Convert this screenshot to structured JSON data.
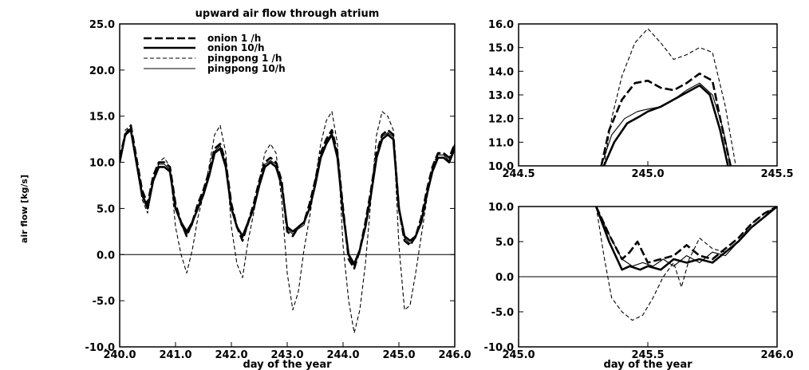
{
  "chart_data": [
    {
      "id": "main",
      "type": "line",
      "title": "upward air flow through atrium",
      "xlabel": "day of the year",
      "ylabel": "air flow [kg/s]",
      "xlim": [
        240.0,
        246.0
      ],
      "ylim": [
        -10.0,
        25.0
      ],
      "xticks": [
        "240.0",
        "241.0",
        "242.0",
        "243.0",
        "244.0",
        "245.0",
        "246.0"
      ],
      "yticks": [
        "-10.0",
        "-5.0",
        "0.0",
        "5.0",
        "10.0",
        "15.0",
        "20.0",
        "25.0"
      ],
      "zero_line": true,
      "legend_position": "top-left",
      "series": [
        {
          "name": "onion 1 /h",
          "style": "dashed-thick",
          "x": [
            240.0,
            240.1,
            240.2,
            240.3,
            240.4,
            240.5,
            240.6,
            240.7,
            240.8,
            240.9,
            241.0,
            241.1,
            241.2,
            241.3,
            241.4,
            241.5,
            241.6,
            241.7,
            241.8,
            241.9,
            242.0,
            242.1,
            242.2,
            242.3,
            242.4,
            242.5,
            242.6,
            242.7,
            242.8,
            242.9,
            243.0,
            243.1,
            243.2,
            243.3,
            243.4,
            243.5,
            243.6,
            243.7,
            243.8,
            243.9,
            244.0,
            244.1,
            244.2,
            244.3,
            244.4,
            244.5,
            244.6,
            244.7,
            244.8,
            244.9,
            245.0,
            245.1,
            245.2,
            245.3,
            245.4,
            245.5,
            245.6,
            245.7,
            245.8,
            245.9,
            246.0
          ],
          "y": [
            10.5,
            13.0,
            14.0,
            10.5,
            7.0,
            5.5,
            8.5,
            10.0,
            10.0,
            9.5,
            5.5,
            3.5,
            2.0,
            3.5,
            5.5,
            7.0,
            9.0,
            11.5,
            12.0,
            10.0,
            5.5,
            3.0,
            1.5,
            3.5,
            5.5,
            8.0,
            10.0,
            10.5,
            10.0,
            8.0,
            2.5,
            2.0,
            3.0,
            3.5,
            5.5,
            8.0,
            11.0,
            12.5,
            13.5,
            11.0,
            5.0,
            -0.5,
            -1.5,
            0.5,
            3.5,
            7.0,
            11.0,
            13.0,
            13.5,
            13.0,
            5.0,
            1.5,
            1.0,
            2.0,
            4.0,
            7.0,
            9.5,
            11.0,
            11.0,
            10.5,
            12.0
          ]
        },
        {
          "name": "onion 10/h",
          "style": "solid-thick",
          "x": [
            240.0,
            240.1,
            240.2,
            240.3,
            240.4,
            240.5,
            240.6,
            240.7,
            240.8,
            240.9,
            241.0,
            241.1,
            241.2,
            241.3,
            241.4,
            241.5,
            241.6,
            241.7,
            241.8,
            241.9,
            242.0,
            242.1,
            242.2,
            242.3,
            242.4,
            242.5,
            242.6,
            242.7,
            242.8,
            242.9,
            243.0,
            243.1,
            243.2,
            243.3,
            243.4,
            243.5,
            243.6,
            243.7,
            243.8,
            243.9,
            244.0,
            244.1,
            244.2,
            244.3,
            244.4,
            244.5,
            244.6,
            244.7,
            244.8,
            244.9,
            245.0,
            245.1,
            245.2,
            245.3,
            245.4,
            245.5,
            245.6,
            245.7,
            245.8,
            245.9,
            246.0
          ],
          "y": [
            10.0,
            13.0,
            13.5,
            10.0,
            6.5,
            5.0,
            8.0,
            9.5,
            9.5,
            9.0,
            5.0,
            3.5,
            2.5,
            3.5,
            5.0,
            6.5,
            8.5,
            11.0,
            11.5,
            9.5,
            5.0,
            3.0,
            2.0,
            3.5,
            5.0,
            7.5,
            9.5,
            10.0,
            9.5,
            7.5,
            3.0,
            2.5,
            3.0,
            3.5,
            5.0,
            7.5,
            10.5,
            12.0,
            13.0,
            10.5,
            4.5,
            0.0,
            -1.0,
            0.5,
            3.0,
            6.5,
            10.5,
            12.5,
            13.0,
            12.5,
            5.0,
            2.0,
            1.5,
            2.0,
            3.5,
            6.5,
            9.0,
            10.5,
            10.5,
            10.0,
            11.5
          ]
        },
        {
          "name": "pingpong 1 /h",
          "style": "dashed-thin",
          "x": [
            240.0,
            240.1,
            240.2,
            240.3,
            240.4,
            240.5,
            240.6,
            240.7,
            240.8,
            240.9,
            241.0,
            241.1,
            241.2,
            241.3,
            241.4,
            241.5,
            241.6,
            241.7,
            241.8,
            241.9,
            242.0,
            242.1,
            242.2,
            242.3,
            242.4,
            242.5,
            242.6,
            242.7,
            242.8,
            242.9,
            243.0,
            243.1,
            243.2,
            243.3,
            243.4,
            243.5,
            243.6,
            243.7,
            243.8,
            243.9,
            244.0,
            244.1,
            244.2,
            244.3,
            244.4,
            244.5,
            244.6,
            244.7,
            244.8,
            244.9,
            245.0,
            245.1,
            245.2,
            245.3,
            245.4,
            245.5,
            245.6,
            245.7,
            245.8,
            245.9,
            246.0
          ],
          "y": [
            10.0,
            13.5,
            14.0,
            10.0,
            6.0,
            4.5,
            8.0,
            10.0,
            10.5,
            9.5,
            3.0,
            0.0,
            -2.0,
            0.5,
            4.0,
            6.5,
            9.5,
            13.0,
            14.0,
            11.0,
            3.0,
            -1.0,
            -2.5,
            1.5,
            4.5,
            8.0,
            11.0,
            12.0,
            11.0,
            6.0,
            -2.0,
            -6.0,
            -4.0,
            0.5,
            4.0,
            8.0,
            12.0,
            14.5,
            15.5,
            12.0,
            1.0,
            -5.0,
            -8.5,
            -6.0,
            -1.0,
            6.0,
            13.0,
            15.5,
            15.0,
            13.5,
            1.0,
            -6.0,
            -5.5,
            -2.0,
            2.0,
            6.0,
            9.5,
            11.0,
            11.0,
            10.5,
            12.0
          ]
        },
        {
          "name": "pingpong 10/h",
          "style": "solid-thin",
          "x": [
            240.0,
            240.1,
            240.2,
            240.3,
            240.4,
            240.5,
            240.6,
            240.7,
            240.8,
            240.9,
            241.0,
            241.1,
            241.2,
            241.3,
            241.4,
            241.5,
            241.6,
            241.7,
            241.8,
            241.9,
            242.0,
            242.1,
            242.2,
            242.3,
            242.4,
            242.5,
            242.6,
            242.7,
            242.8,
            242.9,
            243.0,
            243.1,
            243.2,
            243.3,
            243.4,
            243.5,
            243.6,
            243.7,
            243.8,
            243.9,
            244.0,
            244.1,
            244.2,
            244.3,
            244.4,
            244.5,
            244.6,
            244.7,
            244.8,
            244.9,
            245.0,
            245.1,
            245.2,
            245.3,
            245.4,
            245.5,
            245.6,
            245.7,
            245.8,
            245.9,
            246.0
          ],
          "y": [
            10.2,
            12.8,
            13.8,
            10.2,
            6.8,
            5.2,
            8.2,
            9.8,
            9.8,
            9.2,
            5.2,
            3.2,
            2.2,
            3.2,
            5.2,
            6.8,
            8.8,
            11.2,
            11.8,
            9.8,
            5.2,
            3.2,
            1.8,
            3.2,
            5.2,
            7.8,
            9.8,
            10.2,
            9.8,
            7.8,
            2.8,
            2.2,
            2.8,
            3.2,
            5.2,
            7.8,
            10.8,
            12.2,
            13.2,
            10.8,
            4.8,
            -0.2,
            -1.2,
            0.2,
            3.2,
            6.8,
            10.8,
            12.8,
            13.2,
            12.8,
            4.8,
            1.8,
            1.2,
            1.8,
            3.8,
            6.8,
            9.2,
            10.8,
            10.8,
            10.2,
            11.8
          ]
        }
      ]
    },
    {
      "id": "top-right",
      "type": "line",
      "xlim": [
        244.5,
        245.5
      ],
      "ylim": [
        10.0,
        16.0
      ],
      "xticks": [
        "244.5",
        "245.0",
        "245.5"
      ],
      "yticks": [
        "10.0",
        "11.0",
        "12.0",
        "13.0",
        "14.0",
        "15.0",
        "16.0"
      ],
      "series": [
        {
          "name": "onion 1 /h",
          "style": "dashed-thick",
          "x": [
            244.82,
            244.85,
            244.9,
            244.95,
            245.0,
            245.05,
            245.1,
            245.15,
            245.2,
            245.25,
            245.28,
            245.32
          ],
          "y": [
            10.0,
            11.5,
            12.8,
            13.5,
            13.6,
            13.3,
            13.2,
            13.5,
            13.9,
            13.6,
            12.0,
            10.0
          ]
        },
        {
          "name": "onion 10/h",
          "style": "solid-thick",
          "x": [
            244.83,
            244.87,
            244.92,
            244.97,
            245.0,
            245.05,
            245.1,
            245.15,
            245.2,
            245.24,
            245.28,
            245.31
          ],
          "y": [
            10.0,
            11.0,
            11.8,
            12.1,
            12.3,
            12.5,
            12.8,
            13.1,
            13.4,
            13.0,
            11.5,
            10.0
          ]
        },
        {
          "name": "pingpong 1 /h",
          "style": "dashed-thin",
          "x": [
            244.83,
            244.86,
            244.9,
            244.95,
            245.0,
            245.05,
            245.1,
            245.15,
            245.2,
            245.25,
            245.3,
            245.34
          ],
          "y": [
            10.0,
            12.0,
            13.8,
            15.2,
            15.8,
            15.2,
            14.5,
            14.7,
            15.0,
            14.8,
            12.5,
            10.0
          ]
        },
        {
          "name": "pingpong 10/h",
          "style": "solid-thin",
          "x": [
            244.82,
            244.86,
            244.91,
            244.96,
            245.0,
            245.05,
            245.1,
            245.15,
            245.2,
            245.25,
            245.29,
            245.32
          ],
          "y": [
            10.0,
            11.3,
            12.0,
            12.3,
            12.4,
            12.5,
            12.8,
            13.2,
            13.5,
            13.0,
            11.6,
            10.0
          ]
        }
      ]
    },
    {
      "id": "bottom-right",
      "type": "line",
      "xlabel": "day of the year",
      "xlim": [
        245.0,
        246.0
      ],
      "ylim": [
        -10.0,
        10.0
      ],
      "xticks": [
        "245.0",
        "245.5",
        "246.0"
      ],
      "yticks": [
        "-10.0",
        "-5.0",
        "0.0",
        "5.0",
        "10.0"
      ],
      "zero_line": true,
      "series": [
        {
          "name": "onion 1 /h",
          "style": "dashed-thick",
          "x": [
            245.3,
            245.35,
            245.4,
            245.43,
            245.46,
            245.5,
            245.55,
            245.6,
            245.65,
            245.7,
            245.75,
            245.8,
            245.85,
            245.9,
            245.95,
            246.0
          ],
          "y": [
            10.0,
            6.0,
            2.5,
            3.5,
            5.0,
            2.0,
            2.5,
            3.0,
            4.5,
            3.0,
            2.5,
            4.0,
            5.5,
            7.5,
            9.0,
            10.0
          ]
        },
        {
          "name": "onion 10/h",
          "style": "solid-thick",
          "x": [
            245.3,
            245.35,
            245.4,
            245.43,
            245.47,
            245.5,
            245.55,
            245.6,
            245.65,
            245.7,
            245.75,
            245.8,
            245.85,
            245.9,
            245.95,
            246.0
          ],
          "y": [
            10.0,
            5.0,
            1.0,
            1.5,
            1.0,
            1.5,
            1.0,
            2.5,
            2.0,
            2.5,
            2.0,
            3.5,
            5.0,
            7.0,
            8.5,
            10.0
          ]
        },
        {
          "name": "pingpong 1 /h",
          "style": "dashed-thin",
          "x": [
            245.3,
            245.33,
            245.36,
            245.4,
            245.44,
            245.48,
            245.52,
            245.56,
            245.6,
            245.63,
            245.66,
            245.7,
            245.75,
            245.8,
            245.85,
            245.9,
            245.95,
            246.0
          ],
          "y": [
            10.0,
            3.0,
            -3.0,
            -5.0,
            -6.2,
            -5.5,
            -3.0,
            0.0,
            2.0,
            -1.5,
            2.5,
            5.5,
            4.0,
            3.5,
            5.0,
            7.5,
            9.0,
            10.0
          ]
        },
        {
          "name": "pingpong 10/h",
          "style": "solid-thin",
          "x": [
            245.3,
            245.35,
            245.4,
            245.44,
            245.48,
            245.52,
            245.56,
            245.6,
            245.65,
            245.7,
            245.75,
            245.8,
            245.85,
            245.9,
            245.95,
            246.0
          ],
          "y": [
            10.0,
            6.0,
            2.5,
            1.5,
            2.0,
            1.5,
            2.5,
            1.5,
            3.0,
            2.0,
            3.5,
            3.0,
            5.0,
            7.0,
            8.5,
            10.0
          ]
        }
      ]
    }
  ]
}
